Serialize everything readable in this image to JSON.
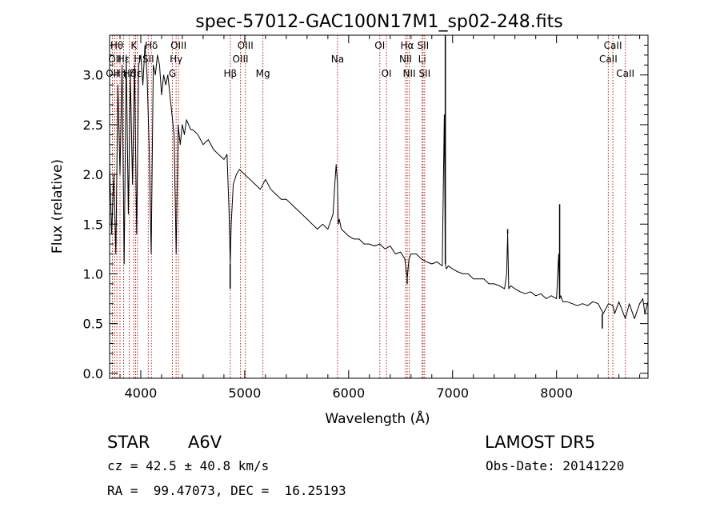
{
  "chart_data": {
    "type": "line",
    "title": "spec-57012-GAC100N17M1_sp02-248.fits",
    "xlabel": "Wavelength (Å)",
    "ylabel": "Flux (relative)",
    "xlim": [
      3700,
      8880
    ],
    "ylim": [
      -0.05,
      3.4
    ],
    "x_ticks": [
      4000,
      5000,
      6000,
      7000,
      8000
    ],
    "y_ticks": [
      0.0,
      0.5,
      1.0,
      1.5,
      2.0,
      2.5,
      3.0
    ],
    "x_tick_labels": [
      "4000",
      "5000",
      "6000",
      "7000",
      "8000"
    ],
    "y_tick_labels": [
      "0.0",
      "0.5",
      "1.0",
      "1.5",
      "2.0",
      "2.5",
      "3.0"
    ],
    "line_color": "#000000",
    "marker_color": "#b22222",
    "series": [
      {
        "x": [
          3700,
          3720,
          3740,
          3760,
          3780,
          3800,
          3820,
          3840,
          3860,
          3880,
          3900,
          3920,
          3940,
          3960,
          3980,
          4000,
          4020,
          4040,
          4060,
          4080,
          4100,
          4120,
          4140,
          4160,
          4180,
          4200,
          4220,
          4240,
          4260,
          4280,
          4300,
          4320,
          4340,
          4360,
          4380,
          4400,
          4420,
          4440,
          4460,
          4480,
          4500,
          4550,
          4600,
          4650,
          4700,
          4750,
          4800,
          4830,
          4850,
          4861,
          4870,
          4890,
          4920,
          4950,
          5000,
          5050,
          5100,
          5150,
          5200,
          5250,
          5300,
          5350,
          5400,
          5450,
          5500,
          5550,
          5600,
          5650,
          5700,
          5750,
          5800,
          5850,
          5870,
          5880,
          5893,
          5900,
          5910,
          5930,
          5960,
          6000,
          6050,
          6100,
          6150,
          6200,
          6250,
          6300,
          6350,
          6400,
          6450,
          6500,
          6540,
          6563,
          6580,
          6600,
          6650,
          6700,
          6750,
          6800,
          6850,
          6900,
          6920,
          6930,
          6940,
          6960,
          7000,
          7050,
          7100,
          7150,
          7200,
          7250,
          7300,
          7350,
          7400,
          7450,
          7500,
          7520,
          7530,
          7540,
          7560,
          7600,
          7650,
          7700,
          7750,
          7800,
          7850,
          7900,
          7950,
          8000,
          8020,
          8030,
          8040,
          8060,
          8100,
          8150,
          8200,
          8250,
          8300,
          8350,
          8400,
          8450,
          8500,
          8542,
          8560,
          8600,
          8662,
          8700,
          8750,
          8800,
          8830,
          8850,
          8880
        ],
        "y": [
          2.1,
          1.4,
          2.0,
          1.2,
          2.9,
          2.0,
          3.1,
          1.1,
          3.2,
          1.6,
          3.0,
          1.9,
          3.1,
          1.4,
          3.1,
          3.2,
          2.9,
          3.3,
          3.0,
          2.3,
          1.2,
          3.1,
          3.0,
          3.2,
          3.1,
          2.8,
          3.0,
          2.9,
          3.0,
          2.8,
          2.6,
          2.4,
          1.2,
          2.5,
          2.3,
          2.5,
          2.4,
          2.55,
          2.5,
          2.45,
          2.45,
          2.4,
          2.3,
          2.35,
          2.25,
          2.2,
          2.15,
          2.2,
          1.6,
          1.1,
          1.5,
          1.9,
          2.0,
          2.05,
          2.0,
          1.95,
          1.9,
          1.85,
          1.95,
          1.85,
          1.8,
          1.75,
          1.75,
          1.7,
          1.65,
          1.6,
          1.55,
          1.5,
          1.45,
          1.5,
          1.45,
          1.6,
          1.95,
          2.1,
          1.9,
          1.5,
          1.55,
          1.45,
          1.42,
          1.38,
          1.35,
          1.35,
          1.3,
          1.3,
          1.28,
          1.3,
          1.25,
          1.28,
          1.2,
          1.22,
          1.15,
          0.95,
          1.15,
          1.2,
          1.2,
          1.15,
          1.12,
          1.1,
          1.12,
          1.08,
          2.6,
          1.1,
          1.05,
          1.08,
          1.05,
          1.02,
          1.0,
          1.0,
          0.95,
          0.95,
          0.95,
          0.9,
          0.9,
          0.88,
          0.85,
          1.0,
          1.4,
          0.85,
          0.88,
          0.85,
          0.82,
          0.8,
          0.82,
          0.78,
          0.8,
          0.75,
          0.78,
          0.75,
          1.2,
          0.75,
          0.78,
          0.72,
          0.72,
          0.7,
          0.68,
          0.7,
          0.68,
          0.72,
          0.7,
          0.6,
          0.7,
          0.68,
          0.6,
          0.72,
          0.55,
          0.7,
          0.55,
          0.7,
          0.75,
          0.6,
          0.72
        ]
      }
    ],
    "spikes": [
      [
        6930,
        3.4
      ],
      [
        7530,
        1.45
      ],
      [
        8030,
        1.7
      ],
      [
        4860,
        0.85
      ],
      [
        6563,
        0.9
      ],
      [
        8440,
        0.45
      ]
    ],
    "line_markers": [
      {
        "wavelength": 3727,
        "label": "OII",
        "row": 2
      },
      {
        "wavelength": 3750,
        "label": "OII",
        "row": 1
      },
      {
        "wavelength": 3770,
        "label": "Hθ",
        "row": 0
      },
      {
        "wavelength": 3800,
        "label": "Hη",
        "row": 2
      },
      {
        "wavelength": 3835,
        "label": "Hε",
        "row": 1
      },
      {
        "wavelength": 3889,
        "label": "Hζ",
        "row": 2
      },
      {
        "wavelength": 3933,
        "label": "K",
        "row": 0
      },
      {
        "wavelength": 3950,
        "label": "Hε",
        "row": 2
      },
      {
        "wavelength": 3968,
        "label": "H",
        "row": 1
      },
      {
        "wavelength": 4072,
        "label": "SII",
        "row": 1
      },
      {
        "wavelength": 4102,
        "label": "Hδ",
        "row": 0
      },
      {
        "wavelength": 4304,
        "label": "G",
        "row": 2
      },
      {
        "wavelength": 4340,
        "label": "Hγ",
        "row": 1
      },
      {
        "wavelength": 4363,
        "label": "OIII",
        "row": 0
      },
      {
        "wavelength": 4861,
        "label": "Hβ",
        "row": 2
      },
      {
        "wavelength": 4959,
        "label": "OIII",
        "row": 1
      },
      {
        "wavelength": 5007,
        "label": "OIII",
        "row": 0
      },
      {
        "wavelength": 5175,
        "label": "Mg",
        "row": 2
      },
      {
        "wavelength": 5893,
        "label": "Na",
        "row": 1
      },
      {
        "wavelength": 6300,
        "label": "OI",
        "row": 0
      },
      {
        "wavelength": 6364,
        "label": "OI",
        "row": 2
      },
      {
        "wavelength": 6548,
        "label": "NII",
        "row": 1
      },
      {
        "wavelength": 6563,
        "label": "Hα",
        "row": 0
      },
      {
        "wavelength": 6583,
        "label": "NII",
        "row": 2
      },
      {
        "wavelength": 6707,
        "label": "Li",
        "row": 1
      },
      {
        "wavelength": 6716,
        "label": "SII",
        "row": 0
      },
      {
        "wavelength": 6731,
        "label": "SII",
        "row": 2
      },
      {
        "wavelength": 8498,
        "label": "CaII",
        "row": 1
      },
      {
        "wavelength": 8542,
        "label": "CaII",
        "row": 0
      },
      {
        "wavelength": 8662,
        "label": "CaII",
        "row": 2
      }
    ]
  },
  "info": {
    "class_label": "STAR",
    "subclass": "A6V",
    "survey": "LAMOST DR5",
    "cz": "cz = 42.5 ± 40.8 km/s",
    "obs_date": "Obs-Date: 20141220",
    "coords": "RA =  99.47073, DEC =  16.25193"
  }
}
